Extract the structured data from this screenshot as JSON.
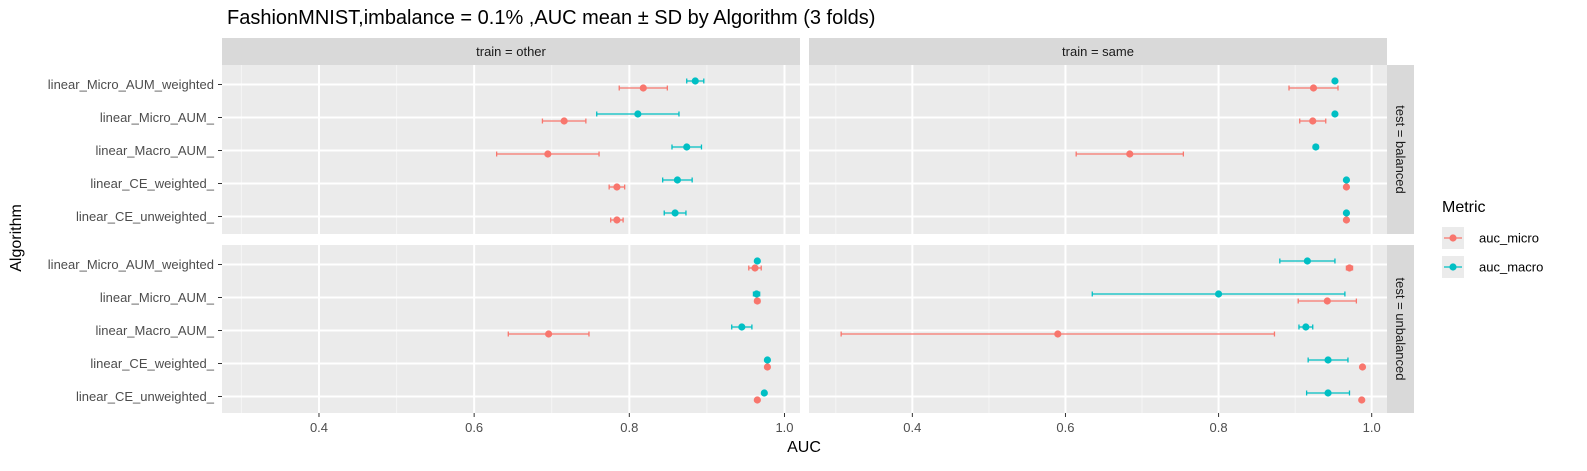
{
  "chart_data": {
    "type": "dot-errorbar-facet",
    "title": "FashionMNIST,imbalance = 0.1% ,AUC mean ± SD by Algorithm (3 folds)",
    "xlabel": "AUC",
    "ylabel": "Algorithm",
    "x_ticks": [
      0.4,
      0.6,
      0.8,
      1.0
    ],
    "x_tick_labels": [
      "0.4",
      "0.6",
      "0.8",
      "1.0"
    ],
    "grid": true,
    "legend": {
      "title": "Metric",
      "placement": "right",
      "entries": [
        {
          "key": "auc_micro",
          "label": "auc_micro",
          "color": "#F8766D"
        },
        {
          "key": "auc_macro",
          "label": "auc_macro",
          "color": "#00BFC4"
        }
      ]
    },
    "categories": [
      "linear_Micro_AUM_weighted",
      "linear_Micro_AUM_",
      "linear_Macro_AUM_",
      "linear_CE_weighted_",
      "linear_CE_unweighted_"
    ],
    "col_facets": [
      {
        "key": "other",
        "label": "train = other",
        "xlim": [
          0.275,
          1.02
        ]
      },
      {
        "key": "same",
        "label": "train = same",
        "xlim": [
          0.265,
          1.02
        ]
      }
    ],
    "row_facets": [
      {
        "key": "balanced",
        "label": "test = balanced"
      },
      {
        "key": "unbalanced",
        "label": "test = unbalanced"
      }
    ],
    "panels": [
      {
        "train": "other",
        "test": "balanced",
        "auc_micro": [
          {
            "mean": 0.818,
            "sd": 0.031
          },
          {
            "mean": 0.716,
            "sd": 0.028
          },
          {
            "mean": 0.695,
            "sd": 0.066
          },
          {
            "mean": 0.784,
            "sd": 0.01
          },
          {
            "mean": 0.784,
            "sd": 0.008
          }
        ],
        "auc_macro": [
          {
            "mean": 0.885,
            "sd": 0.011
          },
          {
            "mean": 0.811,
            "sd": 0.053
          },
          {
            "mean": 0.874,
            "sd": 0.019
          },
          {
            "mean": 0.862,
            "sd": 0.019
          },
          {
            "mean": 0.859,
            "sd": 0.014
          }
        ]
      },
      {
        "train": "same",
        "test": "balanced",
        "auc_micro": [
          {
            "mean": 0.924,
            "sd": 0.032
          },
          {
            "mean": 0.923,
            "sd": 0.017
          },
          {
            "mean": 0.684,
            "sd": 0.07
          },
          {
            "mean": 0.967,
            "sd": 0.002
          },
          {
            "mean": 0.967,
            "sd": 0.002
          }
        ],
        "auc_macro": [
          {
            "mean": 0.952,
            "sd": 0.002
          },
          {
            "mean": 0.952,
            "sd": 0.002
          },
          {
            "mean": 0.927,
            "sd": 0.003
          },
          {
            "mean": 0.967,
            "sd": 0.002
          },
          {
            "mean": 0.967,
            "sd": 0.002
          }
        ]
      },
      {
        "train": "other",
        "test": "unbalanced",
        "auc_micro": [
          {
            "mean": 0.962,
            "sd": 0.008
          },
          {
            "mean": 0.965,
            "sd": 0.003
          },
          {
            "mean": 0.696,
            "sd": 0.052
          },
          {
            "mean": 0.978,
            "sd": 0.002
          },
          {
            "mean": 0.965,
            "sd": 0.002
          }
        ],
        "auc_macro": [
          {
            "mean": 0.965,
            "sd": 0.002
          },
          {
            "mean": 0.964,
            "sd": 0.004
          },
          {
            "mean": 0.945,
            "sd": 0.013
          },
          {
            "mean": 0.978,
            "sd": 0.002
          },
          {
            "mean": 0.974,
            "sd": 0.002
          }
        ]
      },
      {
        "train": "same",
        "test": "unbalanced",
        "auc_micro": [
          {
            "mean": 0.971,
            "sd": 0.004
          },
          {
            "mean": 0.942,
            "sd": 0.038
          },
          {
            "mean": 0.59,
            "sd": 0.283
          },
          {
            "mean": 0.988,
            "sd": 0.002
          },
          {
            "mean": 0.987,
            "sd": 0.002
          }
        ],
        "auc_macro": [
          {
            "mean": 0.916,
            "sd": 0.036
          },
          {
            "mean": 0.8,
            "sd": 0.165
          },
          {
            "mean": 0.914,
            "sd": 0.009
          },
          {
            "mean": 0.943,
            "sd": 0.026
          },
          {
            "mean": 0.943,
            "sd": 0.028
          }
        ]
      }
    ]
  }
}
